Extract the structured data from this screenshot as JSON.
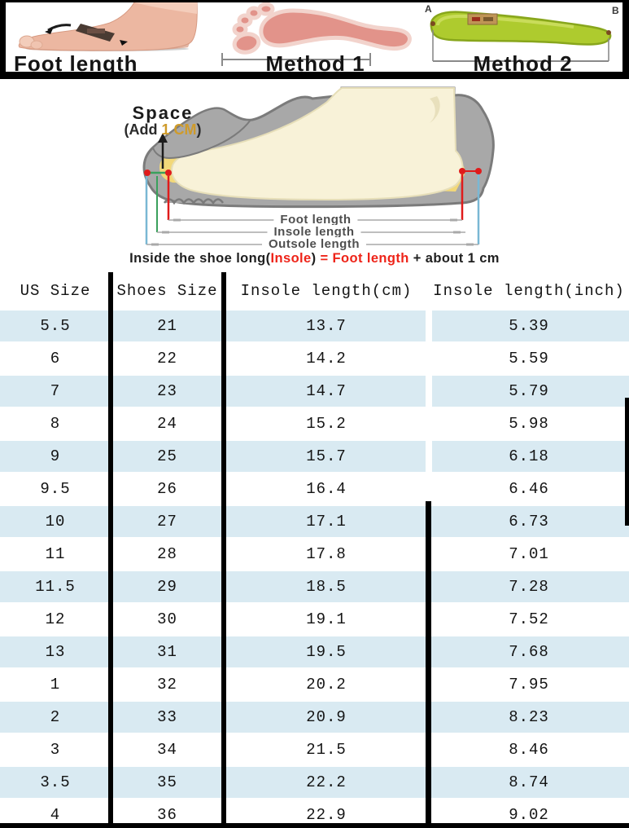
{
  "header_strip": {
    "foot_photo_label": "Foot length",
    "method1_label": "Method 1",
    "method2_label": "Method 2",
    "insole_point_a": "A",
    "insole_point_b": "B"
  },
  "diagram": {
    "space_label": "Space",
    "space_note_prefix": "(Add ",
    "space_note_value": "1 CM",
    "space_note_suffix": ")",
    "dim_foot_length": "Foot length",
    "dim_insole_length": "Insole length",
    "dim_outsole_length": "Outsole length",
    "caption": {
      "part1": "Inside the shoe long(",
      "insole": "Insole",
      "part2": ") ",
      "equals": "=",
      "foot_length": " Foot length ",
      "part3": "+ about 1 cm"
    }
  },
  "table": {
    "columns": [
      "US Size",
      "Shoes Size",
      "Insole length(cm)",
      "Insole length(inch)"
    ],
    "rows": [
      {
        "us": "5.5",
        "shoes": "21",
        "cm": "13.7",
        "inch": "5.39"
      },
      {
        "us": "6",
        "shoes": "22",
        "cm": "14.2",
        "inch": "5.59"
      },
      {
        "us": "7",
        "shoes": "23",
        "cm": "14.7",
        "inch": "5.79"
      },
      {
        "us": "8",
        "shoes": "24",
        "cm": "15.2",
        "inch": "5.98"
      },
      {
        "us": "9",
        "shoes": "25",
        "cm": "15.7",
        "inch": "6.18"
      },
      {
        "us": "9.5",
        "shoes": "26",
        "cm": "16.4",
        "inch": "6.46"
      },
      {
        "us": "10",
        "shoes": "27",
        "cm": "17.1",
        "inch": "6.73"
      },
      {
        "us": "11",
        "shoes": "28",
        "cm": "17.8",
        "inch": "7.01"
      },
      {
        "us": "11.5",
        "shoes": "29",
        "cm": "18.5",
        "inch": "7.28"
      },
      {
        "us": "12",
        "shoes": "30",
        "cm": "19.1",
        "inch": "7.52"
      },
      {
        "us": "13",
        "shoes": "31",
        "cm": "19.5",
        "inch": "7.68"
      },
      {
        "us": "1",
        "shoes": "32",
        "cm": "20.2",
        "inch": "7.95"
      },
      {
        "us": "2",
        "shoes": "33",
        "cm": "20.9",
        "inch": "8.23"
      },
      {
        "us": "3",
        "shoes": "34",
        "cm": "21.5",
        "inch": "8.46"
      },
      {
        "us": "3.5",
        "shoes": "35",
        "cm": "22.2",
        "inch": "8.74"
      },
      {
        "us": "4",
        "shoes": "36",
        "cm": "22.9",
        "inch": "9.02"
      }
    ]
  },
  "colors": {
    "row_stripe_blue": "#d9eaf2",
    "accent_red": "#ee2419",
    "space_value_orange": "#cf9b2a",
    "insole_green": "#aecb2e",
    "footprint_pink": "#e2938a",
    "shoe_gray": "#a8a8a8",
    "foot_cream": "#f8f2d8",
    "insole_yellow": "#f2d879"
  },
  "chart_data": {
    "type": "table",
    "title": "Shoe size conversion chart",
    "columns": [
      "US Size",
      "Shoes Size",
      "Insole length(cm)",
      "Insole length(inch)"
    ],
    "rows": [
      [
        "5.5",
        "21",
        13.7,
        5.39
      ],
      [
        "6",
        "22",
        14.2,
        5.59
      ],
      [
        "7",
        "23",
        14.7,
        5.79
      ],
      [
        "8",
        "24",
        15.2,
        5.98
      ],
      [
        "9",
        "25",
        15.7,
        6.18
      ],
      [
        "9.5",
        "26",
        16.4,
        6.46
      ],
      [
        "10",
        "27",
        17.1,
        6.73
      ],
      [
        "11",
        "28",
        17.8,
        7.01
      ],
      [
        "11.5",
        "29",
        18.5,
        7.28
      ],
      [
        "12",
        "30",
        19.1,
        7.52
      ],
      [
        "13",
        "31",
        19.5,
        7.68
      ],
      [
        "1",
        "32",
        20.2,
        7.95
      ],
      [
        "2",
        "33",
        20.9,
        8.23
      ],
      [
        "3",
        "34",
        21.5,
        8.46
      ],
      [
        "3.5",
        "35",
        22.2,
        8.74
      ],
      [
        "4",
        "36",
        22.9,
        9.02
      ]
    ],
    "notes": "Inside the shoe long(Insole) = Foot length + about 1 cm; Space (Add 1 CM)"
  }
}
